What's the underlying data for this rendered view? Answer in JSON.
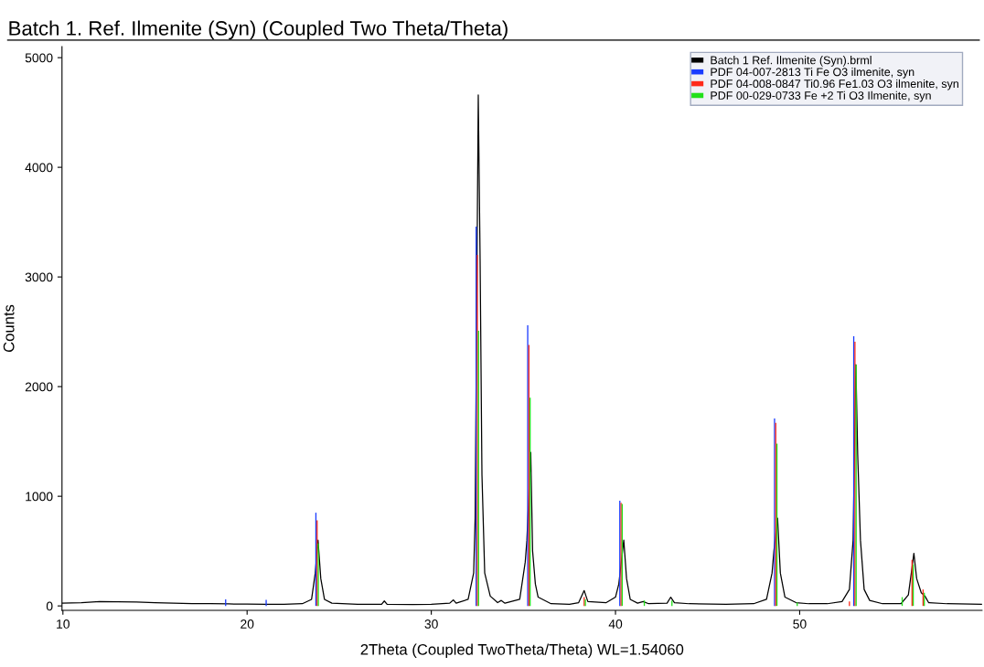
{
  "chart_data": {
    "type": "line",
    "title": "Batch 1. Ref. Ilmenite (Syn) (Coupled Two Theta/Theta)",
    "xlabel": "2Theta (Coupled TwoTheta/Theta) WL=1.54060",
    "ylabel": "Counts",
    "xlim": [
      9.95,
      59.9
    ],
    "xticks": [
      10,
      20,
      30,
      40,
      50
    ],
    "ylim": [
      -40,
      5100
    ],
    "yticks": [
      0,
      1000,
      2000,
      3000,
      4000,
      5000
    ],
    "grid": false,
    "legend": "top right",
    "marker": "none",
    "line_style": "solid",
    "series": [
      {
        "name": "Batch 1 Ref. Ilmenite (Syn).brml",
        "color": "#000000",
        "x": [
          9.95,
          11,
          12,
          13,
          14,
          15,
          16,
          17,
          18,
          19,
          20,
          21,
          22,
          23,
          23.5,
          23.7,
          23.85,
          24.0,
          24.2,
          24.6,
          26,
          27.3,
          27.45,
          27.6,
          29,
          30,
          31,
          31.2,
          31.35,
          32.0,
          32.3,
          32.38,
          32.55,
          32.65,
          32.75,
          32.9,
          33.2,
          33.6,
          33.8,
          34,
          34.8,
          35.1,
          35.19,
          35.4,
          35.5,
          35.65,
          35.8,
          36.5,
          37.5,
          38.0,
          38.3,
          38.5,
          39.5,
          40.0,
          40.18,
          40.45,
          40.6,
          40.8,
          41.2,
          41.5,
          41.8,
          42.8,
          43.0,
          43.2,
          44,
          46,
          47.5,
          48.2,
          48.5,
          48.6,
          48.8,
          48.95,
          49.2,
          49.8,
          50.5,
          51.5,
          52.3,
          52.7,
          52.9,
          53.05,
          53.15,
          53.3,
          53.5,
          53.8,
          54.5,
          55.5,
          55.9,
          56.1,
          56.2,
          56.35,
          56.6,
          56.8,
          57.0,
          58,
          59.9
        ],
        "values": [
          25,
          30,
          40,
          38,
          35,
          30,
          25,
          22,
          20,
          18,
          16,
          15,
          15,
          20,
          60,
          300,
          600,
          250,
          60,
          25,
          15,
          15,
          45,
          15,
          12,
          15,
          25,
          55,
          25,
          60,
          300,
          800,
          4660,
          3150,
          1200,
          300,
          90,
          30,
          50,
          25,
          60,
          400,
          600,
          1400,
          500,
          200,
          80,
          20,
          15,
          30,
          140,
          40,
          30,
          80,
          200,
          600,
          250,
          60,
          25,
          40,
          20,
          25,
          80,
          30,
          20,
          15,
          20,
          60,
          300,
          500,
          800,
          300,
          80,
          30,
          20,
          20,
          40,
          150,
          600,
          2200,
          1380,
          600,
          150,
          50,
          20,
          20,
          100,
          350,
          480,
          250,
          120,
          90,
          30,
          20,
          15
        ]
      },
      {
        "name": "PDF 04-007-2813 Ti Fe O3 ilmenite, syn",
        "type": "bar",
        "color": "#1a3cff",
        "x": [
          18.9,
          21.1,
          23.8,
          32.5,
          35.3,
          40.3,
          48.7,
          53.0
        ],
        "values": [
          60,
          55,
          850,
          3460,
          2560,
          960,
          1710,
          2460
        ]
      },
      {
        "name": "PDF 04-008-0847 Ti0.96 Fe1.03 O3 ilmenite, syn",
        "type": "bar",
        "color": "#ff2a1a",
        "x": [
          23.8,
          32.5,
          35.3,
          38.3,
          40.3,
          48.7,
          52.7,
          53.0,
          56.1,
          56.7
        ],
        "values": [
          780,
          3200,
          2380,
          80,
          940,
          1670,
          40,
          2410,
          420,
          150
        ]
      },
      {
        "name": "PDF 00-029-0733 Fe +2 Ti O3 Ilmenite, syn",
        "type": "bar",
        "color": "#22e01a",
        "x": [
          23.8,
          32.5,
          35.3,
          38.3,
          40.3,
          41.5,
          43.0,
          48.7,
          49.8,
          53.0,
          55.5,
          56.1,
          56.7
        ],
        "values": [
          570,
          2510,
          1900,
          60,
          930,
          50,
          50,
          1480,
          30,
          2200,
          80,
          380,
          120
        ]
      }
    ]
  }
}
